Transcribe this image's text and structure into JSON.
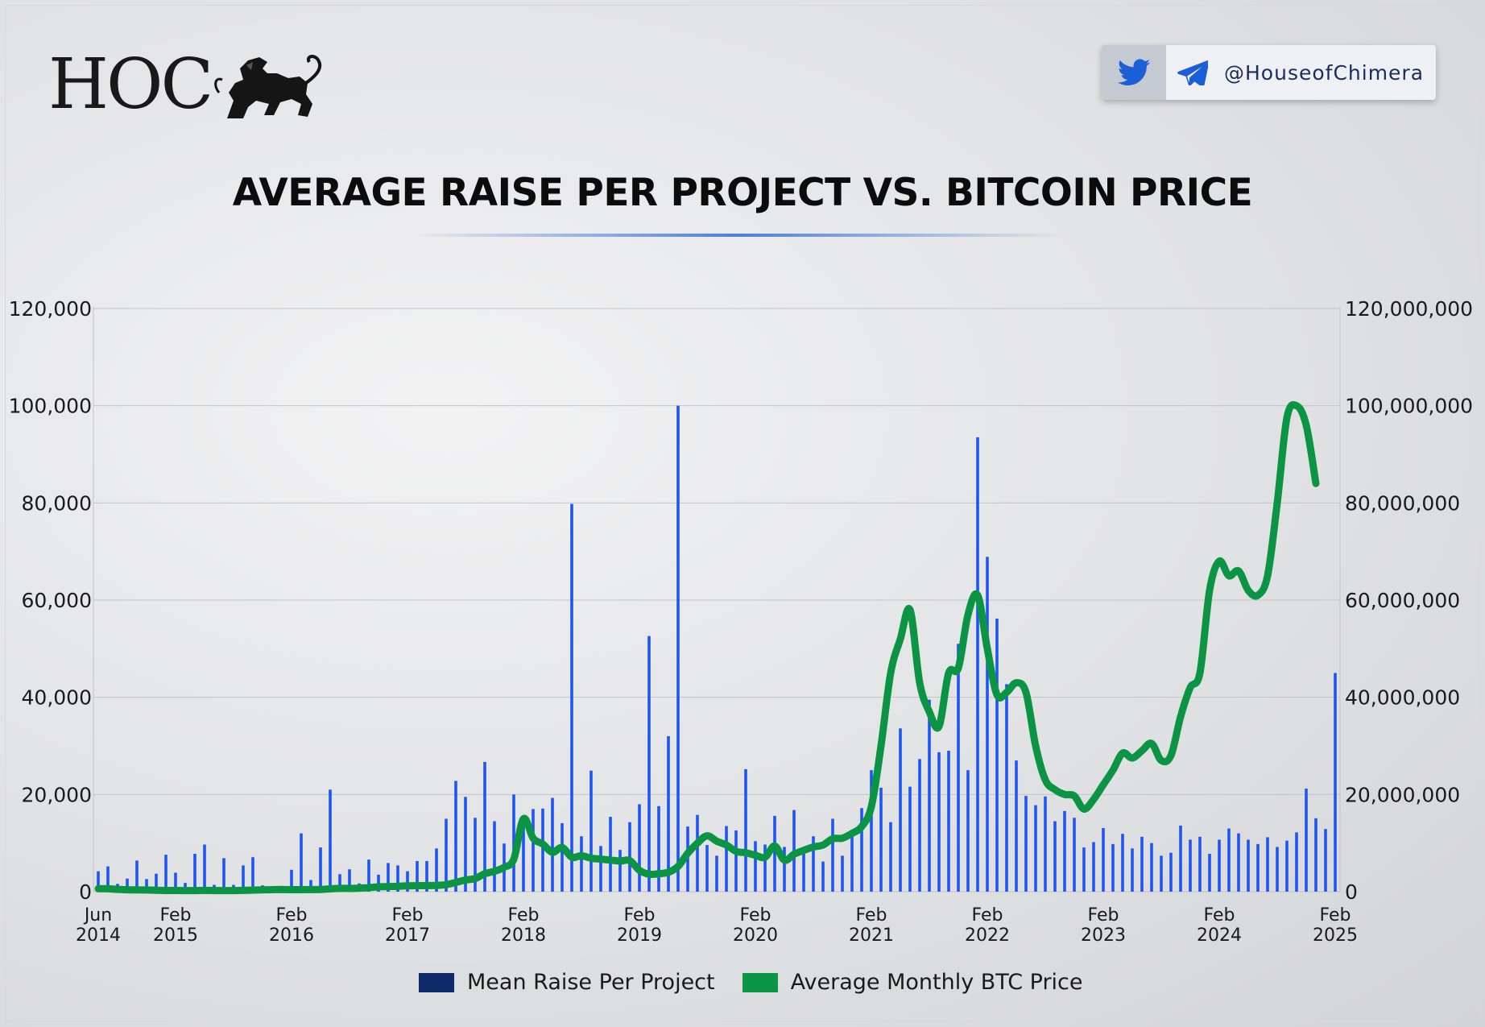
{
  "brand": {
    "logo_text": "HOC",
    "social_handle": "@HouseofChimera",
    "icons": [
      "lion-emblem-icon",
      "twitter-icon",
      "telegram-icon"
    ]
  },
  "chart_data": {
    "type": "bar+line",
    "title": "AVERAGE RAISE PER PROJECT VS. BITCOIN PRICE",
    "x_tick_labels": [
      {
        "top": "Jun",
        "bottom": "2014",
        "month": 0
      },
      {
        "top": "Feb",
        "bottom": "2015",
        "month": 8
      },
      {
        "top": "Feb",
        "bottom": "2016",
        "month": 20
      },
      {
        "top": "Feb",
        "bottom": "2017",
        "month": 32
      },
      {
        "top": "Feb",
        "bottom": "2018",
        "month": 44
      },
      {
        "top": "Feb",
        "bottom": "2019",
        "month": 56
      },
      {
        "top": "Feb",
        "bottom": "2020",
        "month": 68
      },
      {
        "top": "Feb",
        "bottom": "2021",
        "month": 80
      },
      {
        "top": "Feb",
        "bottom": "2022",
        "month": 92
      },
      {
        "top": "Feb",
        "bottom": "2023",
        "month": 104
      },
      {
        "top": "Feb",
        "bottom": "2024",
        "month": 116
      },
      {
        "top": "Feb",
        "bottom": "2025",
        "month": 128
      }
    ],
    "left_axis": {
      "min": 0,
      "max": 120000,
      "ticks": [
        "0",
        "20,000",
        "40,000",
        "60,000",
        "80,000",
        "100,000",
        "120,000"
      ]
    },
    "right_axis": {
      "min": 0,
      "max": 120000000,
      "ticks": [
        "0",
        "20,000,000",
        "40,000,000",
        "60,000,000",
        "80,000,000",
        "100,000,000",
        "120,000,000"
      ]
    },
    "grid": true,
    "legend_position": "bottom",
    "series": [
      {
        "name": "Mean Raise Per Project",
        "axis": "right",
        "color": "#1f55f0",
        "legend_color": "#0f2a6b",
        "type": "bar",
        "values": [
          4200000,
          5200000,
          1600000,
          2700000,
          6400000,
          2600000,
          3700000,
          7600000,
          3900000,
          1800000,
          7800000,
          9700000,
          1400000,
          6900000,
          1400000,
          5400000,
          7100000,
          1300000,
          1000000,
          1000000,
          4500000,
          12000000,
          2400000,
          9100000,
          21000000,
          3600000,
          4600000,
          1700000,
          6600000,
          3500000,
          5900000,
          5400000,
          4200000,
          6300000,
          6300000,
          8900000,
          15000000,
          22800000,
          19500000,
          15200000,
          26700000,
          14500000,
          9900000,
          20000000,
          14100000,
          17000000,
          17100000,
          19300000,
          14100000,
          79800000,
          11400000,
          24900000,
          9400000,
          15400000,
          8600000,
          14300000,
          18000000,
          52600000,
          17600000,
          32000000,
          100000000,
          13400000,
          15800000,
          9600000,
          7400000,
          13500000,
          12600000,
          25200000,
          10400000,
          9700000,
          15600000,
          9200000,
          16800000,
          7800000,
          11400000,
          6200000,
          15000000,
          7400000,
          11800000,
          17200000,
          25000000,
          21400000,
          14300000,
          33600000,
          21600000,
          27300000,
          39500000,
          28700000,
          29000000,
          51000000,
          25000000,
          93500000,
          68900000,
          56200000,
          42700000,
          27000000,
          19700000,
          17800000,
          19600000,
          14500000,
          16600000,
          15200000,
          9100000,
          10200000,
          13100000,
          9800000,
          11900000,
          8900000,
          11300000,
          10000000,
          7400000,
          8000000,
          13600000,
          10700000,
          11300000,
          7800000,
          10700000,
          13000000,
          12000000,
          10700000,
          9800000,
          11200000,
          9200000,
          10500000,
          12200000,
          21200000,
          15100000,
          12900000,
          45000000
        ]
      },
      {
        "name": "Average Monthly BTC Price",
        "axis": "left",
        "color": "#0a9444",
        "legend_color": "#0a9444",
        "type": "line",
        "values": [
          620,
          590,
          480,
          390,
          360,
          340,
          300,
          240,
          250,
          240,
          235,
          260,
          240,
          230,
          240,
          270,
          330,
          380,
          420,
          440,
          410,
          420,
          430,
          460,
          580,
          680,
          670,
          730,
          830,
          1000,
          1050,
          1100,
          1200,
          1250,
          1250,
          1300,
          1450,
          1900,
          2400,
          2700,
          3700,
          4200,
          5000,
          6700,
          15000,
          11000,
          9800,
          8100,
          9100,
          7100,
          7400,
          6900,
          6700,
          6500,
          6300,
          6400,
          4400,
          3600,
          3700,
          4000,
          5200,
          7900,
          10000,
          11500,
          10400,
          9600,
          8300,
          8000,
          7500,
          7100,
          9400,
          6500,
          7700,
          8500,
          9200,
          9600,
          10900,
          11000,
          12000,
          13400,
          17500,
          30000,
          45000,
          52000,
          58000,
          43000,
          37000,
          34000,
          45000,
          46000,
          57000,
          61000,
          50000,
          40500,
          41000,
          43000,
          41000,
          30000,
          23000,
          21000,
          20000,
          19700,
          17000,
          19000,
          22000,
          25000,
          28500,
          27500,
          29000,
          30500,
          27000,
          28000,
          36000,
          42000,
          45000,
          62000,
          68000,
          65000,
          66000,
          62000,
          61000,
          65000,
          80000,
          97500,
          100000,
          96000,
          84000
        ]
      }
    ]
  }
}
